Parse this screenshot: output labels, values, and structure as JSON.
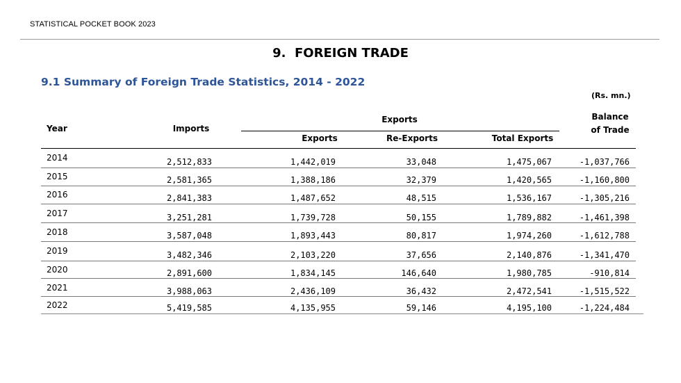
{
  "header": {
    "publication": "STATISTICAL POCKET BOOK 2023",
    "chapter_title": "9.  FOREIGN TRADE"
  },
  "section": {
    "title": "9.1 Summary of Foreign Trade Statistics, 2014 - 2022",
    "unit": "(Rs. mn.)"
  },
  "table": {
    "headers": {
      "year": "Year",
      "imports": "Imports",
      "exports_group": "Exports",
      "exports": "Exports",
      "re_exports": "Re-Exports",
      "total_exports": "Total Exports",
      "balance_line1": "Balance",
      "balance_line2": "of Trade"
    },
    "rows": [
      {
        "year": "2014",
        "imports": "2,512,833",
        "exports": "1,442,019",
        "re_exports": "33,048",
        "total_exports": "1,475,067",
        "balance": "-1,037,766"
      },
      {
        "year": "2015",
        "imports": "2,581,365",
        "exports": "1,388,186",
        "re_exports": "32,379",
        "total_exports": "1,420,565",
        "balance": "-1,160,800"
      },
      {
        "year": "2016",
        "imports": "2,841,383",
        "exports": "1,487,652",
        "re_exports": "48,515",
        "total_exports": "1,536,167",
        "balance": "-1,305,216"
      },
      {
        "year": "2017",
        "imports": "3,251,281",
        "exports": "1,739,728",
        "re_exports": "50,155",
        "total_exports": "1,789,882",
        "balance": "-1,461,398"
      },
      {
        "year": "2018",
        "imports": "3,587,048",
        "exports": "1,893,443",
        "re_exports": "80,817",
        "total_exports": "1,974,260",
        "balance": "-1,612,788"
      },
      {
        "year": "2019",
        "imports": "3,482,346",
        "exports": "2,103,220",
        "re_exports": "37,656",
        "total_exports": "2,140,876",
        "balance": "-1,341,470"
      },
      {
        "year": "2020",
        "imports": "2,891,600",
        "exports": "1,834,145",
        "re_exports": "146,640",
        "total_exports": "1,980,785",
        "balance": "-910,814"
      },
      {
        "year": "2021",
        "imports": "3,988,063",
        "exports": "2,436,109",
        "re_exports": "36,432",
        "total_exports": "2,472,541",
        "balance": "-1,515,522"
      },
      {
        "year": "2022",
        "imports": "5,419,585",
        "exports": "4,135,955",
        "re_exports": "59,146",
        "total_exports": "4,195,100",
        "balance": "-1,224,484"
      }
    ]
  }
}
